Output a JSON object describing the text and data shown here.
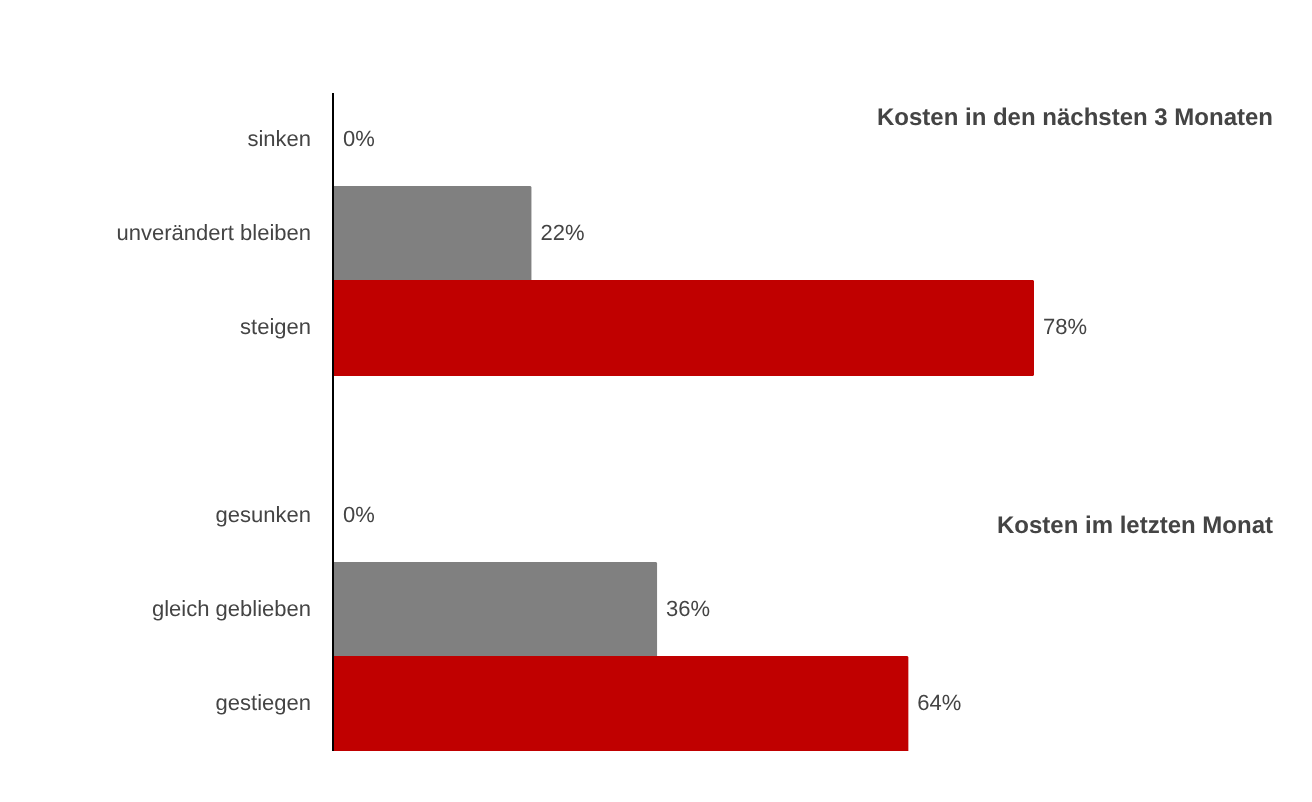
{
  "chart_data": {
    "type": "bar",
    "orientation": "horizontal",
    "categories": [
      "sinken",
      "unverändert bleiben",
      "steigen",
      null,
      "gesunken",
      "gleich geblieben",
      "gestiegen"
    ],
    "values": [
      0,
      22,
      78,
      null,
      0,
      36,
      64
    ],
    "colors": [
      "#808080",
      "#808080",
      "#c00000",
      "#808080",
      "#808080",
      "#808080",
      "#c00000"
    ],
    "value_labels": [
      "0%",
      "22%",
      "78%",
      null,
      "0%",
      "36%",
      "64%"
    ],
    "annotations": [
      "Kosten in den nächsten 3 Monaten",
      "Kosten im letzten Monat"
    ]
  }
}
